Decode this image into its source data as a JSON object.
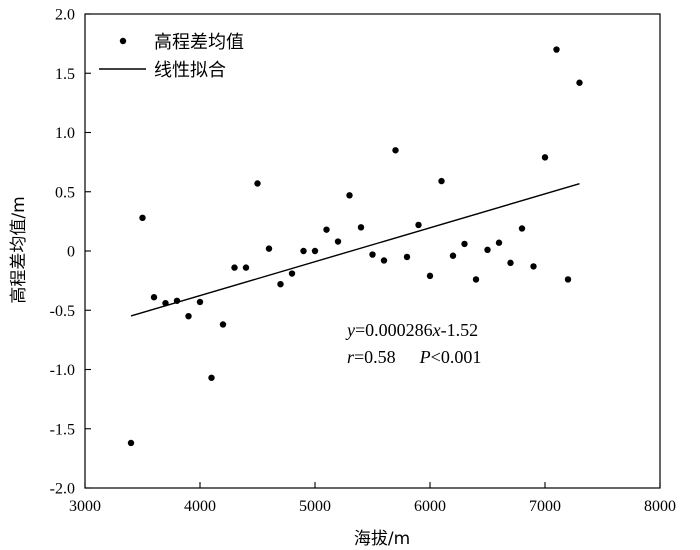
{
  "chart_data": {
    "type": "scatter",
    "xlabel": "海拔/m",
    "ylabel": "高程差均值/m",
    "xlim": [
      3000,
      8000
    ],
    "ylim": [
      -2.0,
      2.0
    ],
    "x_ticks": [
      3000,
      4000,
      5000,
      6000,
      7000,
      8000
    ],
    "y_ticks": [
      2.0,
      1.5,
      1.0,
      0.5,
      0,
      -0.5,
      -1.0,
      -1.5,
      -2.0
    ],
    "x_tick_labels": [
      "3000",
      "4000",
      "5000",
      "6000",
      "7000",
      "8000"
    ],
    "y_tick_labels": [
      "2.0",
      "1.5",
      "1.0",
      "0.5",
      "0",
      "-0.5",
      "-1.0",
      "-1.5",
      "-2.0"
    ],
    "grid": false,
    "legend_position": "top-left",
    "series": [
      {
        "name": "高程差均值",
        "kind": "scatter",
        "x": [
          3400,
          3500,
          3600,
          3700,
          3800,
          3900,
          4000,
          4100,
          4200,
          4300,
          4400,
          4500,
          4600,
          4700,
          4800,
          4900,
          5000,
          5100,
          5200,
          5300,
          5400,
          5500,
          5600,
          5700,
          5800,
          5900,
          6000,
          6100,
          6200,
          6300,
          6400,
          6500,
          6600,
          6700,
          6800,
          6900,
          7000,
          7100,
          7200,
          7300
        ],
        "y": [
          -1.62,
          0.28,
          -0.39,
          -0.44,
          -0.42,
          -0.55,
          -0.43,
          -1.07,
          -0.62,
          -0.14,
          -0.14,
          0.57,
          0.02,
          -0.28,
          -0.19,
          0.0,
          0.0,
          0.18,
          0.08,
          0.47,
          0.2,
          -0.03,
          -0.08,
          0.85,
          -0.05,
          0.22,
          -0.21,
          0.59,
          -0.04,
          0.06,
          -0.24,
          0.01,
          0.07,
          -0.1,
          0.19,
          -0.13,
          0.79,
          1.7,
          -0.24,
          1.42
        ]
      },
      {
        "name": "线性拟合",
        "kind": "line",
        "x": [
          3400,
          7300
        ],
        "y": [
          -0.548,
          0.568
        ]
      }
    ],
    "annotations": {
      "equation": {
        "y": "y",
        "eq": "=0.000286",
        "x": "x",
        "rest": "-1.52"
      },
      "stats": {
        "r": "r",
        "r_val": "=0.58",
        "p": "P",
        "p_val": "<0.001"
      }
    }
  }
}
